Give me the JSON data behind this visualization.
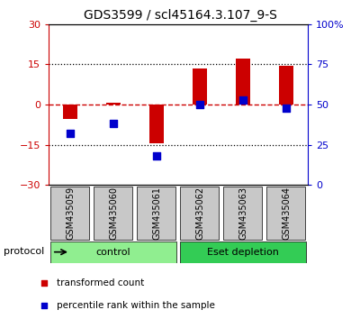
{
  "title": "GDS3599 / scl45164.3.107_9-S",
  "samples": [
    "GSM435059",
    "GSM435060",
    "GSM435061",
    "GSM435062",
    "GSM435063",
    "GSM435064"
  ],
  "transformed_count": [
    -5.5,
    0.5,
    -14.5,
    13.5,
    17.0,
    14.5
  ],
  "percentile_rank": [
    32,
    38,
    18,
    50,
    53,
    48
  ],
  "ylim_left": [
    -30,
    30
  ],
  "ylim_right": [
    0,
    100
  ],
  "yticks_left": [
    -30,
    -15,
    0,
    15,
    30
  ],
  "yticks_right": [
    0,
    25,
    50,
    75,
    100
  ],
  "ytick_labels_right": [
    "0",
    "25",
    "50",
    "75",
    "100%"
  ],
  "hlines_dotted": [
    -15,
    15
  ],
  "hline_dashed": 0,
  "bar_color": "#cc0000",
  "dot_color": "#0000cc",
  "protocol_groups": [
    {
      "label": "control",
      "start": 0,
      "end": 3,
      "color": "#90ee90"
    },
    {
      "label": "Eset depletion",
      "start": 3,
      "end": 6,
      "color": "#33cc55"
    }
  ],
  "legend_items": [
    {
      "label": "transformed count",
      "color": "#cc0000"
    },
    {
      "label": "percentile rank within the sample",
      "color": "#0000cc"
    }
  ],
  "protocol_label": "protocol",
  "background_color": "#ffffff",
  "tick_color_left": "#cc0000",
  "tick_color_right": "#0000cc",
  "sample_bg": "#c8c8c8",
  "bar_width": 0.35
}
